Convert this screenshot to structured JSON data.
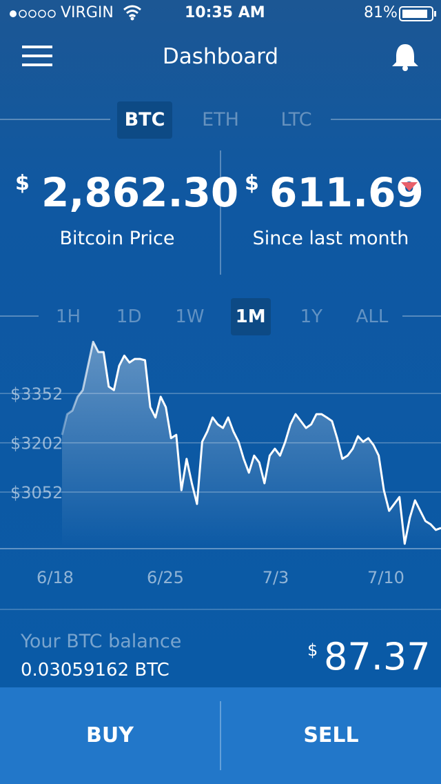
{
  "status_bar": {
    "carrier": "VIRGIN",
    "time": "10:35 AM",
    "battery": "81%"
  },
  "header": {
    "title": "Dashboard"
  },
  "coin_tabs": {
    "items": [
      "BTC",
      "ETH",
      "LTC"
    ],
    "selected": 0
  },
  "price": {
    "currency": "$",
    "amount": "2,862.30",
    "label": "Bitcoin Price"
  },
  "change": {
    "currency": "$",
    "amount": "611.69",
    "label": "Since last month"
  },
  "range_tabs": {
    "items": [
      "1H",
      "1D",
      "1W",
      "1M",
      "1Y",
      "ALL"
    ],
    "selected": 3
  },
  "chart_data": {
    "type": "line",
    "color": "#ffffff",
    "x_labels": [
      "6/18",
      "6/25",
      "7/3",
      "7/10"
    ],
    "values": [
      3226,
      3289,
      3300,
      3342,
      3362,
      3436,
      3509,
      3478,
      3478,
      3373,
      3362,
      3436,
      3467,
      3446,
      3457,
      3457,
      3453,
      3310,
      3279,
      3342,
      3310,
      3216,
      3226,
      3058,
      3153,
      3079,
      3016,
      3205,
      3237,
      3279,
      3258,
      3247,
      3279,
      3237,
      3205,
      3153,
      3111,
      3163,
      3142,
      3079,
      3163,
      3184,
      3163,
      3205,
      3258,
      3289,
      3268,
      3247,
      3258,
      3289,
      3289,
      3279,
      3268,
      3216,
      3153,
      3163,
      3184,
      3222,
      3205,
      3216,
      3195,
      3163,
      3058,
      2995,
      3016,
      3037,
      2895,
      2974,
      3027,
      2995,
      2964,
      2954,
      2937,
      2943
    ],
    "ylim": [
      2880,
      3560
    ],
    "yticks": [
      {
        "value": 3352,
        "label": "$3352"
      },
      {
        "value": 3202,
        "label": "$3202"
      },
      {
        "value": 3052,
        "label": "$3052"
      }
    ],
    "grid": true
  },
  "balance": {
    "label": "Your BTC balance",
    "btc": "0.03059162 BTC",
    "currency": "$",
    "usd": "87.37"
  },
  "actions": {
    "buy": "BUY",
    "sell": "SELL"
  }
}
